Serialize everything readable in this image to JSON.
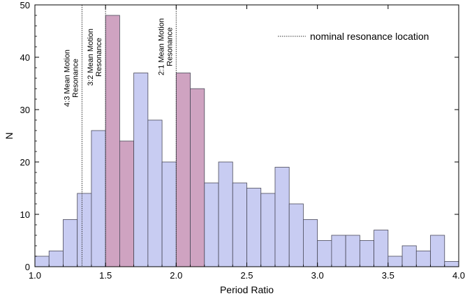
{
  "chart_data": {
    "type": "bar",
    "xlabel": "Period Ratio",
    "ylabel": "N",
    "xlim": [
      1.0,
      4.0
    ],
    "ylim": [
      0,
      50
    ],
    "xticks": [
      "1.0",
      "1.5",
      "2.0",
      "2.5",
      "3.0",
      "3.5",
      "4.0"
    ],
    "yticks": [
      "0",
      "10",
      "20",
      "30",
      "40",
      "50"
    ],
    "bin_width": 0.1,
    "bins": [
      {
        "x": 1.0,
        "count": 2,
        "highlight": false
      },
      {
        "x": 1.1,
        "count": 3,
        "highlight": false
      },
      {
        "x": 1.2,
        "count": 9,
        "highlight": false
      },
      {
        "x": 1.3,
        "count": 14,
        "highlight": false
      },
      {
        "x": 1.4,
        "count": 26,
        "highlight": false
      },
      {
        "x": 1.5,
        "count": 48,
        "highlight": true
      },
      {
        "x": 1.6,
        "count": 24,
        "highlight": true
      },
      {
        "x": 1.7,
        "count": 37,
        "highlight": false
      },
      {
        "x": 1.8,
        "count": 28,
        "highlight": false
      },
      {
        "x": 1.9,
        "count": 20,
        "highlight": false
      },
      {
        "x": 2.0,
        "count": 37,
        "highlight": true
      },
      {
        "x": 2.1,
        "count": 34,
        "highlight": true
      },
      {
        "x": 2.2,
        "count": 16,
        "highlight": false
      },
      {
        "x": 2.3,
        "count": 20,
        "highlight": false
      },
      {
        "x": 2.4,
        "count": 16,
        "highlight": false
      },
      {
        "x": 2.5,
        "count": 15,
        "highlight": false
      },
      {
        "x": 2.6,
        "count": 14,
        "highlight": false
      },
      {
        "x": 2.7,
        "count": 19,
        "highlight": false
      },
      {
        "x": 2.8,
        "count": 12,
        "highlight": false
      },
      {
        "x": 2.9,
        "count": 9,
        "highlight": false
      },
      {
        "x": 3.0,
        "count": 5,
        "highlight": false
      },
      {
        "x": 3.1,
        "count": 6,
        "highlight": false
      },
      {
        "x": 3.2,
        "count": 6,
        "highlight": false
      },
      {
        "x": 3.3,
        "count": 5,
        "highlight": false
      },
      {
        "x": 3.4,
        "count": 7,
        "highlight": false
      },
      {
        "x": 3.5,
        "count": 2,
        "highlight": false
      },
      {
        "x": 3.6,
        "count": 4,
        "highlight": false
      },
      {
        "x": 3.7,
        "count": 3,
        "highlight": false
      },
      {
        "x": 3.8,
        "count": 6,
        "highlight": false
      },
      {
        "x": 3.9,
        "count": 1,
        "highlight": false
      }
    ],
    "colors": {
      "bar_fill": "#c8ccf2",
      "highlight_fill": "#cfa3c1",
      "bar_edge": "#4a4a5a"
    },
    "resonance_lines": [
      {
        "x": 1.3333,
        "label_lines": [
          "4:3 Mean Motion",
          "Resonance"
        ],
        "label_anchor_y": 36
      },
      {
        "x": 1.5,
        "label_lines": [
          "3:2 Mean Motion",
          "Resonance"
        ],
        "label_anchor_y": 40
      },
      {
        "x": 2.0,
        "label_lines": [
          "2:1 Mean Motion",
          "Resonance"
        ],
        "label_anchor_y": 42
      }
    ],
    "legend": {
      "label": "nominal resonance location",
      "position": "top-right",
      "line_style": "dotted"
    },
    "grid": false
  }
}
